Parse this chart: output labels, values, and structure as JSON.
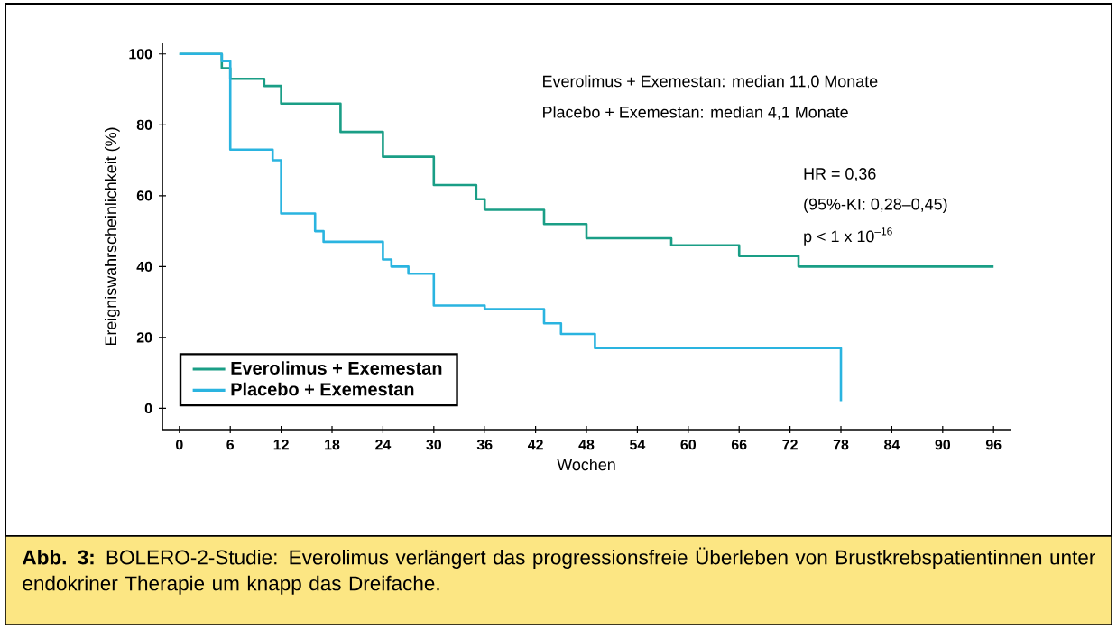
{
  "chart_data": {
    "type": "step",
    "xlabel": "Wochen",
    "ylabel": "Ereigniswahrscheinlichkeit (%)",
    "xlim": [
      -2,
      98
    ],
    "ylim": [
      -6,
      103
    ],
    "xticks": [
      0,
      6,
      12,
      18,
      24,
      30,
      36,
      42,
      48,
      54,
      60,
      66,
      72,
      78,
      84,
      90,
      96
    ],
    "yticks": [
      0,
      20,
      40,
      60,
      80,
      100
    ],
    "grid": false,
    "legend": "bottom left",
    "series": [
      {
        "name": "Everolimus + Exemestan",
        "color": "#1a9e86",
        "x": [
          0,
          5,
          6,
          10,
          12,
          19,
          24,
          30,
          35,
          36,
          43,
          48,
          58,
          66,
          73,
          96
        ],
        "values": [
          100,
          96,
          93,
          91,
          86,
          78,
          71,
          63,
          59,
          56,
          52,
          48,
          46,
          43,
          40,
          40
        ]
      },
      {
        "name": "Placebo + Exemestan",
        "color": "#2ab4e0",
        "x": [
          0,
          5,
          6,
          11,
          12,
          16,
          17,
          24,
          25,
          27,
          30,
          36,
          43,
          45,
          49,
          78,
          78
        ],
        "values": [
          100,
          98,
          73,
          70,
          55,
          50,
          47,
          42,
          40,
          38,
          29,
          28,
          24,
          21,
          17,
          17,
          2
        ]
      }
    ],
    "annotations": [
      "Everolimus + Exemestan: median  11,0 Monate",
      "Placebo + Exemestan: median 4,1 Monate",
      "HR = 0,36",
      "(95%-KI: 0,28–0,45)",
      "p < 1 x 10$^{–16}$",
      "**Abb. 3:** BOLERO-2-Studie: Everolimus verlängert das progressionsfreie Überleben von Brustkrebspatientinnen unter endokriner Therapie um knapp das Dreifache."
    ]
  }
}
